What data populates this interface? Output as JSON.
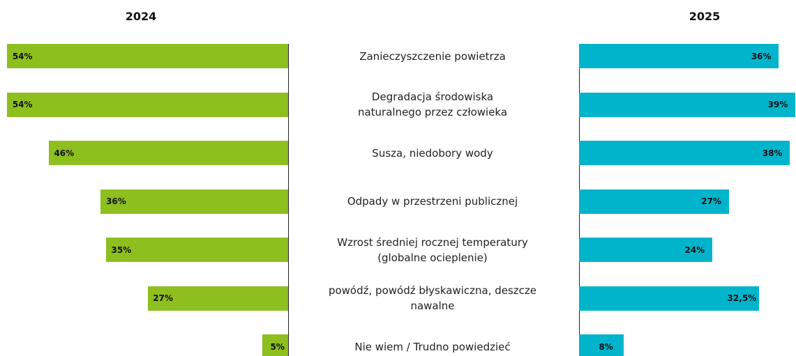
{
  "chart_data": {
    "type": "butterfly-bar",
    "categories": [
      "Zanieczyszczenie powietrza",
      "Degradacja środowiska\nnaturalnego przez człowieka",
      "Susza, niedobory wody",
      "Odpady w przestrzeni publicznej",
      "Wzrost średniej rocznej temperatury\n(globalne ocieplenie)",
      "powódź, powódź błyskawiczna, deszcze\nnawalne",
      "Nie wiem / Trudno powiedzieć"
    ],
    "series": [
      {
        "name": "2024",
        "color": "#8dbf1f",
        "values": [
          54,
          54,
          46,
          36,
          35,
          27,
          5
        ],
        "value_labels": [
          "54%",
          "54%",
          "46%",
          "36%",
          "35%",
          "27%",
          "5%"
        ]
      },
      {
        "name": "2025",
        "color": "#00b4cc",
        "values": [
          36,
          39,
          38,
          27,
          24,
          32.5,
          8
        ],
        "value_labels": [
          "36%",
          "39%",
          "38%",
          "27%",
          "24%",
          "32,5%",
          "8%"
        ]
      }
    ]
  }
}
